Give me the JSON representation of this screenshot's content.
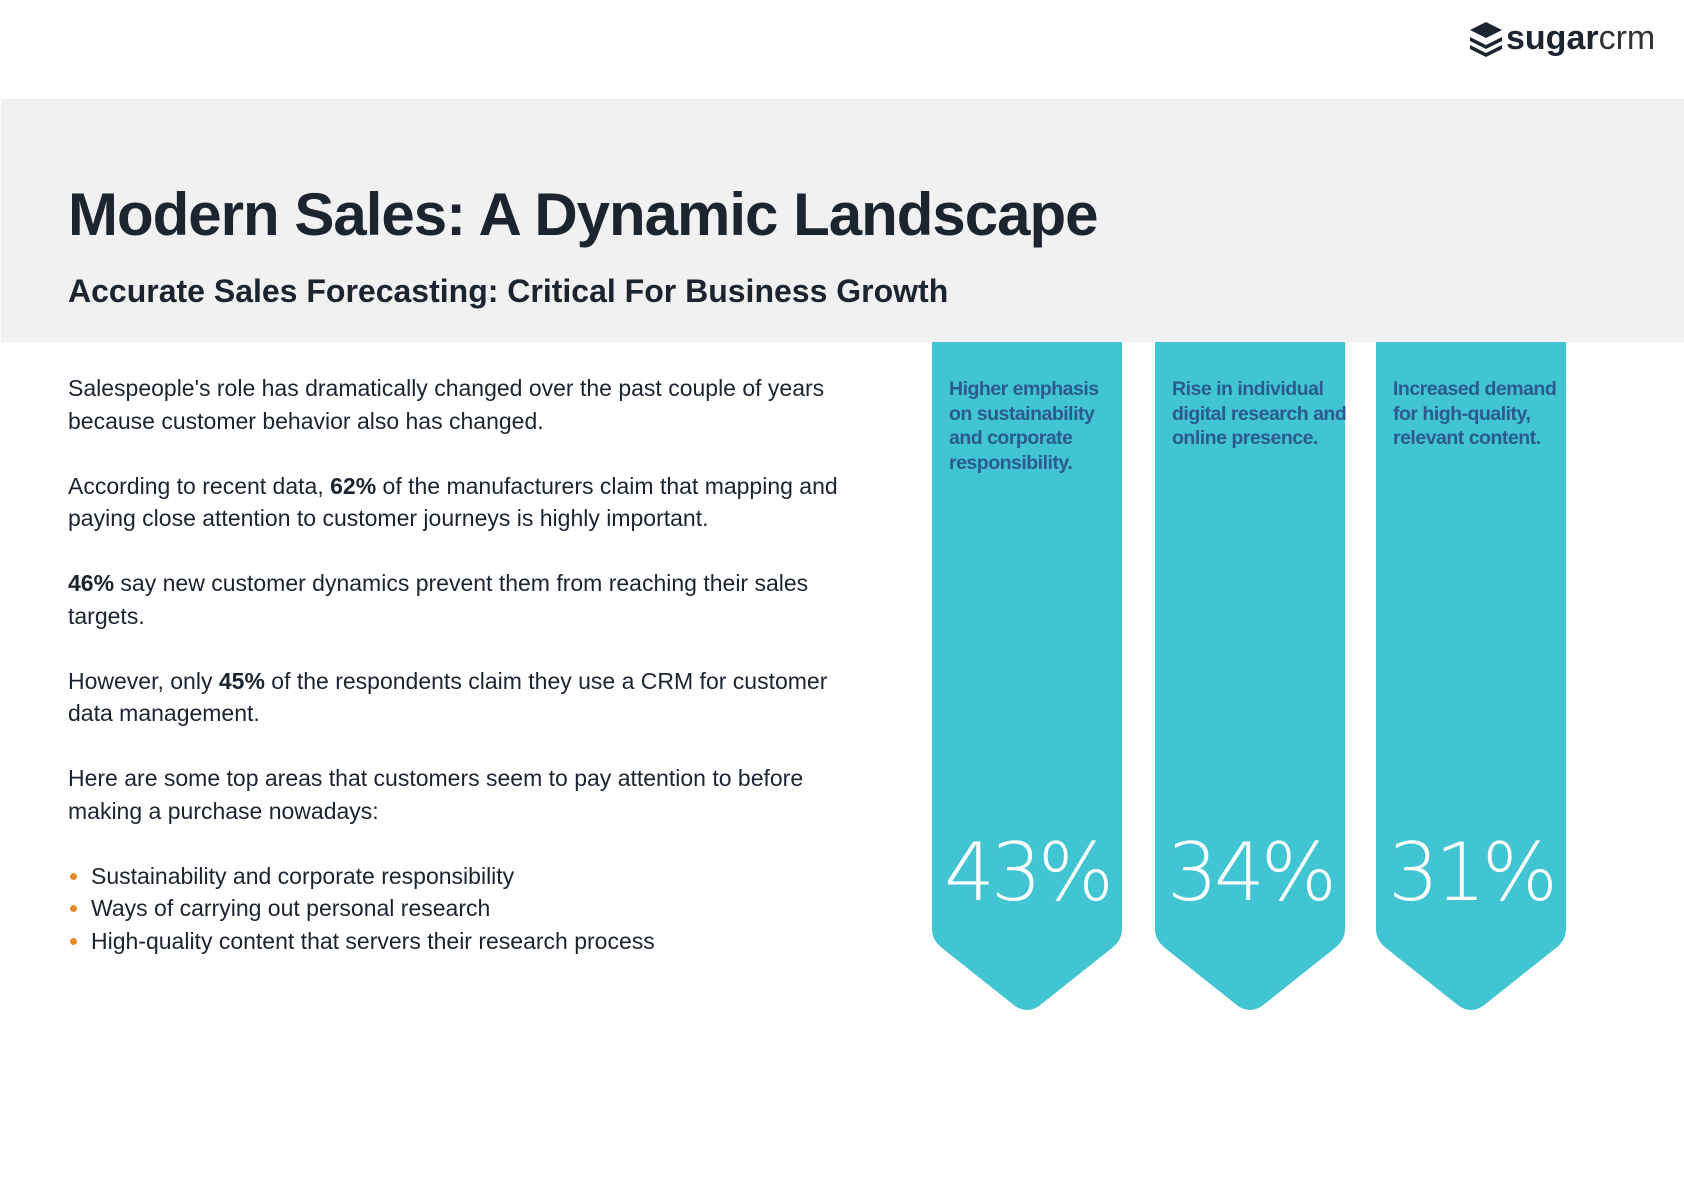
{
  "logo": {
    "bold": "sugar",
    "light": "crm"
  },
  "header": {
    "title": "Modern Sales: A Dynamic Landscape",
    "subtitle": "Accurate Sales Forecasting: Critical For Business Growth"
  },
  "paragraphs": [
    [
      {
        "text": "Salespeople's role has dramatically changed over the past couple of years because customer behavior also has changed.",
        "bold": false
      }
    ],
    [
      {
        "text": "According to recent data, ",
        "bold": false
      },
      {
        "text": "62%",
        "bold": true
      },
      {
        "text": " of the manufacturers claim that mapping and paying close attention to customer journeys is highly important.",
        "bold": false
      }
    ],
    [
      {
        "text": "46%",
        "bold": true
      },
      {
        "text": " say new customer dynamics prevent them from reaching their sales targets.",
        "bold": false
      }
    ],
    [
      {
        "text": "However, only ",
        "bold": false
      },
      {
        "text": "45%",
        "bold": true
      },
      {
        "text": " of the respondents claim they use a CRM for customer data management.",
        "bold": false
      }
    ],
    [
      {
        "text": "Here are some top areas that customers seem to pay attention to before making a purchase nowadays:",
        "bold": false
      }
    ]
  ],
  "bullets": [
    "Sustainability and corporate responsibility",
    "Ways of carrying out personal research",
    "High-quality content that servers their research process"
  ],
  "banners": [
    {
      "label": "Higher emphasis on sustainability and corporate responsibility.",
      "percent": "43%"
    },
    {
      "label": "Rise in individual digital research and online presence.",
      "percent": "34%"
    },
    {
      "label": "Increased demand for high-quality, relevant content.",
      "percent": "31%"
    }
  ]
}
